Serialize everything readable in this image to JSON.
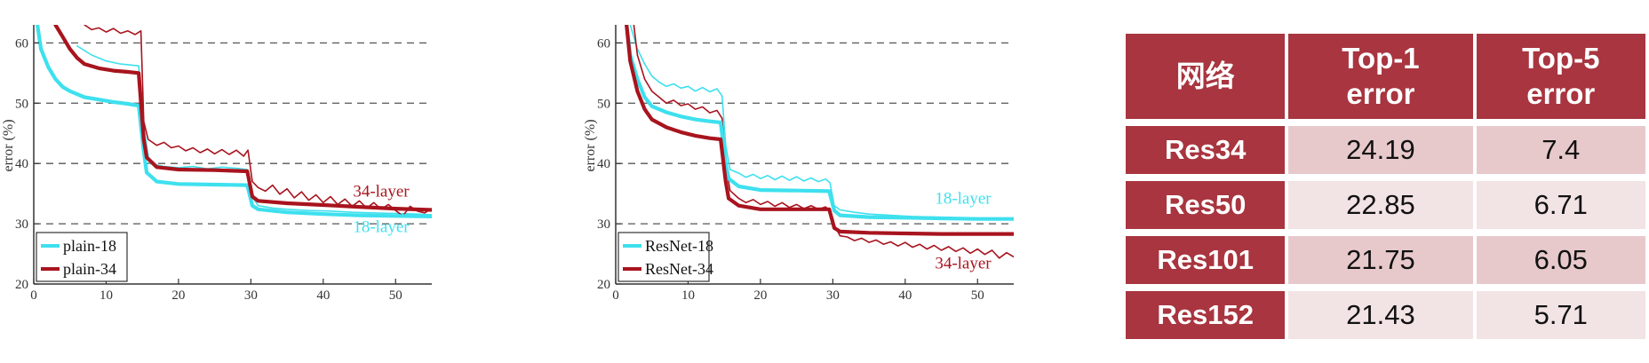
{
  "chart_data": [
    {
      "type": "line",
      "ylabel": "error (%)",
      "xlim": [
        0,
        55
      ],
      "ylim": [
        20,
        63
      ],
      "xticks": [
        0,
        10,
        20,
        30,
        40,
        50
      ],
      "yticks": [
        20,
        30,
        40,
        50,
        60
      ],
      "grid_y": [
        30,
        40,
        50,
        60
      ],
      "legend_position": "bottom-left",
      "legend": [
        "plain-18",
        "plain-34"
      ],
      "annotations": [
        {
          "text": "34-layer",
          "x": 48,
          "y": 34.5,
          "color": "#a8141e"
        },
        {
          "text": "18-layer",
          "x": 48,
          "y": 28.6,
          "color": "#3ee0ee"
        }
      ],
      "series": [
        {
          "name": "plain-18",
          "kind": "val",
          "color": "#3ee0ee",
          "x": [
            0.5,
            1,
            2,
            3,
            4,
            5,
            7,
            9,
            11,
            13,
            14.5,
            15.2,
            15.6,
            17,
            20,
            25,
            29.5,
            30.2,
            31,
            35,
            40,
            45,
            50,
            55
          ],
          "y": [
            63,
            59,
            56,
            54,
            52.7,
            52,
            51,
            50.6,
            50.2,
            49.9,
            49.6,
            42,
            38.5,
            37,
            36.6,
            36.5,
            36.4,
            33,
            32.4,
            31.9,
            31.6,
            31.4,
            31.3,
            31.2
          ]
        },
        {
          "name": "plain-34",
          "kind": "val",
          "color": "#a8141e",
          "x": [
            3,
            4,
            5,
            6,
            7,
            9,
            11,
            13,
            14.5,
            15.2,
            15.6,
            17,
            20,
            25,
            29.5,
            30.2,
            31,
            35,
            40,
            45,
            50,
            55
          ],
          "y": [
            63,
            61,
            59,
            57.5,
            56.5,
            55.8,
            55.4,
            55.2,
            55,
            44,
            41,
            39.4,
            39,
            38.9,
            38.7,
            34.5,
            33.8,
            33.4,
            33.1,
            32.8,
            32.5,
            32.3
          ]
        },
        {
          "name": "plain-18 train",
          "kind": "train",
          "color": "#3ee0ee",
          "x": [
            6,
            8,
            10,
            12,
            14.5,
            15.2,
            16,
            18,
            20,
            22,
            24,
            26,
            28,
            29.5,
            30.2,
            31,
            33,
            35,
            38,
            41,
            44,
            47,
            50,
            53,
            55
          ],
          "y": [
            59.5,
            58,
            57,
            56.5,
            56.2,
            46,
            40,
            39.5,
            39.3,
            39.5,
            39.1,
            39.4,
            39.2,
            39,
            34.5,
            33,
            32.6,
            32.4,
            32.2,
            32.1,
            31.9,
            31.8,
            31.7,
            31.6,
            31.5
          ]
        },
        {
          "name": "plain-34 train",
          "kind": "train",
          "color": "#a8141e",
          "x": [
            7,
            8,
            9,
            10,
            11,
            12,
            13,
            14,
            14.8,
            15.2,
            15.8,
            17,
            18,
            19,
            20,
            21,
            22,
            23,
            24,
            25,
            26,
            27,
            28,
            29,
            29.6,
            30.2,
            31,
            32,
            33,
            34,
            35,
            36,
            37,
            38,
            39,
            40,
            41,
            42,
            43,
            44,
            45,
            46,
            47,
            48,
            49,
            50,
            51,
            52,
            53,
            54,
            55
          ],
          "y": [
            63,
            62.2,
            62.5,
            61.8,
            62.4,
            61.6,
            62,
            61.4,
            62,
            47,
            44,
            43,
            43.5,
            42.6,
            42.9,
            42.1,
            42.6,
            41.8,
            42.4,
            41.6,
            42.3,
            41.5,
            42.2,
            41.2,
            42.2,
            37,
            36,
            35.4,
            36.4,
            34.9,
            35.8,
            34.3,
            35.3,
            33.9,
            34.8,
            33.5,
            34.5,
            33.2,
            34.1,
            32.9,
            33.8,
            32.6,
            33.5,
            32.4,
            33.2,
            32.2,
            31.3,
            32.9,
            32.1,
            31.8,
            32.5
          ]
        }
      ]
    },
    {
      "type": "line",
      "ylabel": "error (%)",
      "xlim": [
        0,
        55
      ],
      "ylim": [
        20,
        63
      ],
      "xticks": [
        0,
        10,
        20,
        30,
        40,
        50
      ],
      "yticks": [
        20,
        30,
        40,
        50,
        60
      ],
      "grid_y": [
        30,
        40,
        50,
        60
      ],
      "legend_position": "bottom-left",
      "legend": [
        "ResNet-18",
        "ResNet-34"
      ],
      "annotations": [
        {
          "text": "18-layer",
          "x": 48,
          "y": 33.3,
          "color": "#3ee0ee"
        },
        {
          "text": "34-layer",
          "x": 48,
          "y": 22.6,
          "color": "#a8141e"
        }
      ],
      "series": [
        {
          "name": "ResNet-18",
          "kind": "val",
          "color": "#3ee0ee",
          "x": [
            1.5,
            2,
            3,
            4,
            5,
            7,
            9,
            11,
            13,
            14.5,
            15.2,
            15.6,
            17,
            20,
            25,
            29.5,
            30.2,
            31,
            35,
            40,
            45,
            50,
            55
          ],
          "y": [
            63,
            58,
            54,
            51,
            49.5,
            48.5,
            47.8,
            47.3,
            47,
            46.8,
            40,
            37.5,
            36.2,
            35.6,
            35.5,
            35.4,
            32.2,
            31.4,
            31.1,
            31,
            30.9,
            30.8,
            30.8
          ]
        },
        {
          "name": "ResNet-34",
          "kind": "val",
          "color": "#a8141e",
          "x": [
            1.5,
            2,
            3,
            4,
            5,
            7,
            9,
            11,
            13,
            14.5,
            15.2,
            15.6,
            17,
            20,
            25,
            29.5,
            30.2,
            31,
            35,
            40,
            45,
            50,
            55
          ],
          "y": [
            63,
            57,
            52,
            49,
            47.3,
            46,
            45.2,
            44.6,
            44.2,
            44,
            37,
            34.2,
            33,
            32.4,
            32.4,
            32.4,
            29.3,
            28.7,
            28.5,
            28.4,
            28.3,
            28.3,
            28.3
          ]
        },
        {
          "name": "ResNet-18 train",
          "kind": "train",
          "color": "#3ee0ee",
          "x": [
            2,
            3,
            4,
            5,
            6,
            7,
            8,
            9,
            10,
            11,
            12,
            13,
            14,
            14.7,
            15.2,
            15.8,
            17,
            18,
            19,
            20,
            21,
            22,
            23,
            24,
            25,
            26,
            27,
            28,
            29,
            29.6,
            30.2,
            31,
            33,
            35,
            38,
            41,
            44,
            47,
            50,
            53,
            55
          ],
          "y": [
            63,
            59,
            56.5,
            54.5,
            53.5,
            52.8,
            53.2,
            52.5,
            52.8,
            52,
            52.6,
            51.9,
            52.4,
            51.2,
            43,
            39,
            38.4,
            37.7,
            38.2,
            37.5,
            38,
            37.3,
            37.9,
            37.2,
            37.8,
            37.1,
            37.6,
            37,
            37.4,
            36.8,
            33,
            32.3,
            31.9,
            31.6,
            31.4,
            31.2,
            31.1,
            31,
            30.9,
            30.8,
            30.8
          ]
        },
        {
          "name": "ResNet-34 train",
          "kind": "train",
          "color": "#a8141e",
          "x": [
            2.5,
            3,
            4,
            5,
            6,
            7,
            8,
            9,
            10,
            11,
            12,
            13,
            14,
            14.7,
            15.2,
            15.8,
            17,
            18,
            19,
            20,
            21,
            22,
            23,
            24,
            25,
            26,
            27,
            28,
            29,
            29.6,
            30.2,
            31,
            32,
            33,
            34,
            35,
            36,
            37,
            38,
            39,
            40,
            41,
            42,
            43,
            44,
            45,
            46,
            47,
            48,
            49,
            50,
            51,
            52,
            53,
            54,
            55
          ],
          "y": [
            63,
            58,
            54,
            52,
            51,
            50,
            50.5,
            49.6,
            49.9,
            49,
            49.4,
            48.4,
            48.8,
            47.5,
            40,
            35.5,
            34.2,
            33.5,
            34,
            33.2,
            33.7,
            32.9,
            33.5,
            32.7,
            33.2,
            32.5,
            33,
            32.4,
            32.8,
            32.1,
            29.8,
            28,
            27.8,
            27.2,
            27.6,
            26.9,
            27.3,
            26.6,
            27,
            26.3,
            26.9,
            26.1,
            26.6,
            25.8,
            26.4,
            25.6,
            26.2,
            25.4,
            26,
            25.1,
            25.8,
            24.9,
            25.6,
            24.3,
            25.2,
            24.5
          ]
        }
      ]
    }
  ],
  "table": {
    "headers": [
      "网络",
      "Top-1\nerror",
      "Top-5\nerror"
    ],
    "rows": [
      {
        "name": "Res34",
        "top1": "24.19",
        "top5": "7.4"
      },
      {
        "name": "Res50",
        "top1": "22.85",
        "top5": "6.71"
      },
      {
        "name": "Res101",
        "top1": "21.75",
        "top5": "6.05"
      },
      {
        "name": "Res152",
        "top1": "21.43",
        "top5": "5.71"
      }
    ]
  }
}
